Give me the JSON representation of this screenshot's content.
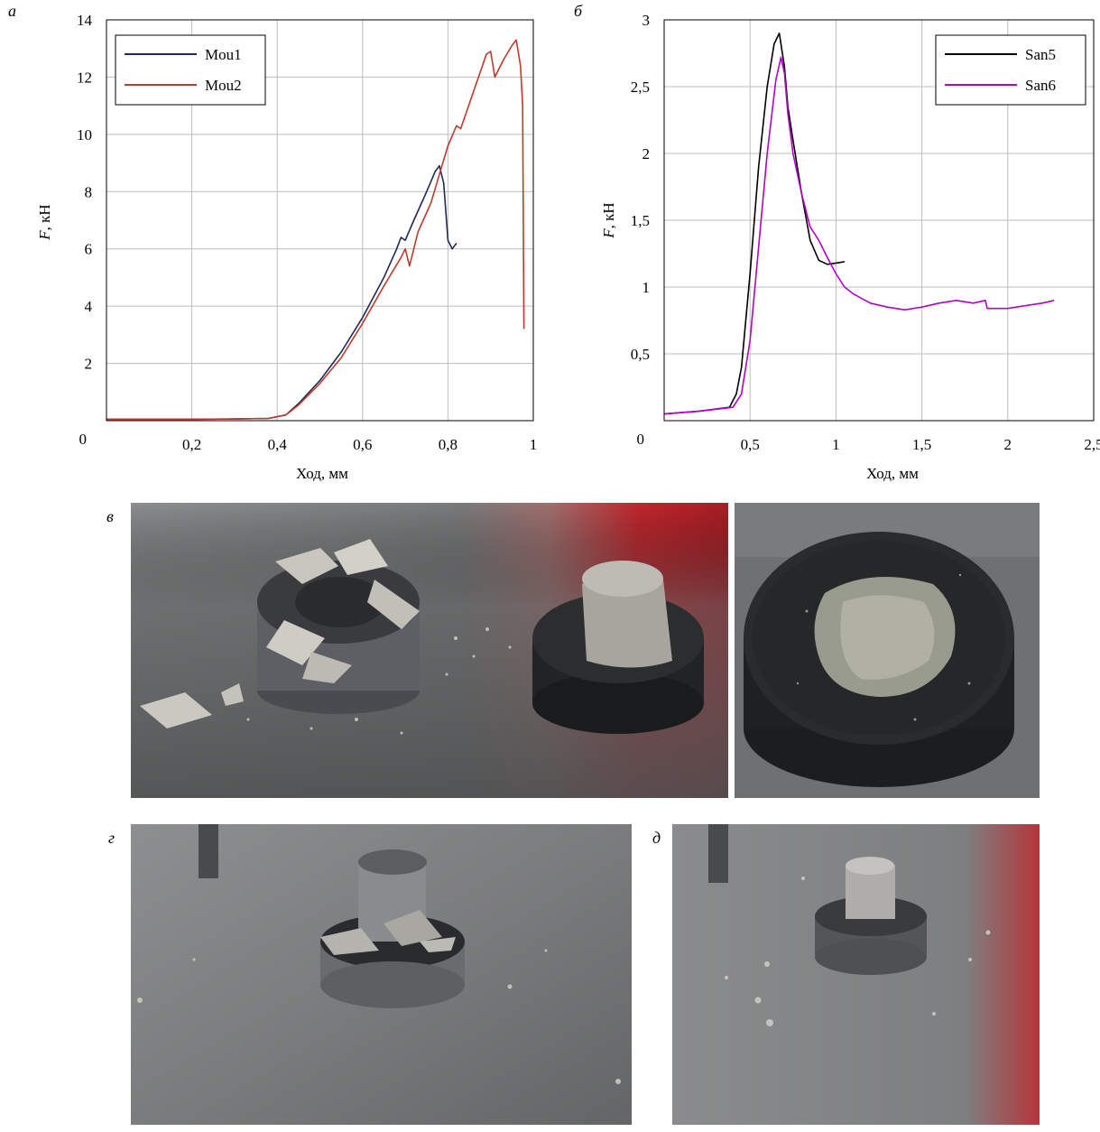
{
  "panels": {
    "a": "а",
    "b": "б",
    "v": "в",
    "g": "г",
    "d": "д"
  },
  "colors": {
    "Mou1": "#1e2a5a",
    "Mou2": "#c0392b",
    "San5": "#000000",
    "San6": "#b400c8",
    "grid": "#bdbdbd"
  },
  "chart_data": [
    {
      "type": "line",
      "title": "",
      "xlabel": "Ход, мм",
      "ylabel_italic": "F",
      "ylabel_rest": ", кН",
      "xlim": [
        0,
        1
      ],
      "ylim": [
        0,
        14
      ],
      "x_ticks": [
        0.2,
        0.4,
        0.6,
        0.8,
        1.0
      ],
      "x_tick_labels": [
        "0,2",
        "0,4",
        "0,6",
        "0,8",
        "1"
      ],
      "y_ticks": [
        2,
        4,
        6,
        8,
        10,
        12,
        14
      ],
      "y_tick_labels": [
        "2",
        "4",
        "6",
        "8",
        "10",
        "12",
        "14"
      ],
      "origin_label": "0",
      "grid": true,
      "legend_position": "top-left",
      "series": [
        {
          "name": "Mou1",
          "x": [
            0.0,
            0.1,
            0.2,
            0.3,
            0.38,
            0.42,
            0.45,
            0.5,
            0.55,
            0.6,
            0.65,
            0.68,
            0.69,
            0.7,
            0.72,
            0.75,
            0.77,
            0.78,
            0.79,
            0.8,
            0.81,
            0.82
          ],
          "y": [
            0.05,
            0.05,
            0.05,
            0.06,
            0.08,
            0.2,
            0.6,
            1.4,
            2.4,
            3.6,
            5.0,
            6.0,
            6.4,
            6.3,
            7.0,
            8.0,
            8.7,
            8.9,
            8.3,
            6.3,
            6.0,
            6.2
          ]
        },
        {
          "name": "Mou2",
          "x": [
            0.0,
            0.1,
            0.2,
            0.3,
            0.38,
            0.42,
            0.45,
            0.5,
            0.55,
            0.6,
            0.65,
            0.69,
            0.7,
            0.71,
            0.73,
            0.76,
            0.78,
            0.8,
            0.82,
            0.83,
            0.86,
            0.89,
            0.9,
            0.91,
            0.93,
            0.95,
            0.96,
            0.97,
            0.975,
            0.978
          ],
          "y": [
            0.05,
            0.05,
            0.05,
            0.06,
            0.08,
            0.2,
            0.55,
            1.3,
            2.2,
            3.4,
            4.7,
            5.7,
            6.0,
            5.4,
            6.6,
            7.6,
            8.6,
            9.6,
            10.3,
            10.2,
            11.5,
            12.8,
            12.9,
            12.0,
            12.6,
            13.1,
            13.3,
            12.4,
            11.0,
            3.2
          ]
        }
      ]
    },
    {
      "type": "line",
      "title": "",
      "xlabel": "Ход, мм",
      "ylabel_italic": "F",
      "ylabel_rest": ", кН",
      "xlim": [
        0,
        2.5
      ],
      "ylim": [
        0,
        3
      ],
      "x_ticks": [
        0.5,
        1.0,
        1.5,
        2.0,
        2.5
      ],
      "x_tick_labels": [
        "0,5",
        "1",
        "1,5",
        "2",
        "2,5"
      ],
      "y_ticks": [
        0.5,
        1.0,
        1.5,
        2.0,
        2.5,
        3.0
      ],
      "y_tick_labels": [
        "0,5",
        "1",
        "1,5",
        "2",
        "2,5",
        "3"
      ],
      "origin_label": "0",
      "grid": true,
      "legend_position": "top-right",
      "series": [
        {
          "name": "San5",
          "x": [
            0.0,
            0.2,
            0.38,
            0.42,
            0.45,
            0.5,
            0.55,
            0.6,
            0.64,
            0.67,
            0.7,
            0.72,
            0.75,
            0.8,
            0.85,
            0.9,
            0.95,
            1.0,
            1.05
          ],
          "y": [
            0.05,
            0.07,
            0.1,
            0.2,
            0.4,
            1.1,
            1.9,
            2.5,
            2.82,
            2.9,
            2.65,
            2.35,
            2.1,
            1.7,
            1.35,
            1.2,
            1.17,
            1.18,
            1.19
          ]
        },
        {
          "name": "San6",
          "x": [
            0.0,
            0.2,
            0.4,
            0.45,
            0.5,
            0.55,
            0.6,
            0.65,
            0.68,
            0.7,
            0.72,
            0.75,
            0.8,
            0.85,
            0.9,
            0.95,
            1.0,
            1.05,
            1.1,
            1.2,
            1.3,
            1.4,
            1.5,
            1.6,
            1.7,
            1.8,
            1.87,
            1.88,
            2.0,
            2.1,
            2.2,
            2.27
          ],
          "y": [
            0.05,
            0.07,
            0.1,
            0.2,
            0.6,
            1.3,
            2.0,
            2.55,
            2.72,
            2.6,
            2.3,
            2.0,
            1.7,
            1.45,
            1.35,
            1.22,
            1.1,
            1.0,
            0.95,
            0.88,
            0.85,
            0.83,
            0.85,
            0.88,
            0.9,
            0.88,
            0.9,
            0.84,
            0.84,
            0.86,
            0.88,
            0.9
          ]
        }
      ]
    }
  ]
}
